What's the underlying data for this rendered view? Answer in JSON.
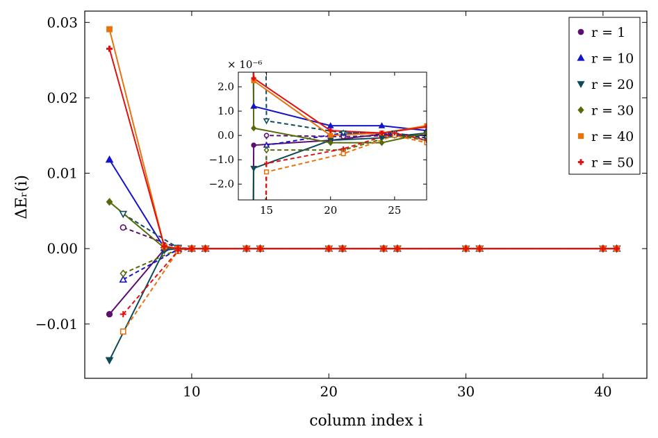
{
  "chart_data": {
    "type": "line",
    "title": "",
    "xlabel": "column index i",
    "ylabel": "ΔEᵣ(i)",
    "xlim": [
      2.2,
      43.2
    ],
    "ylim": [
      -0.0172,
      0.0315
    ],
    "xticks": [
      10,
      20,
      30,
      40
    ],
    "xtick_labels": [
      "10",
      "20",
      "30",
      "40"
    ],
    "yticks": [
      -0.01,
      0.0,
      0.01,
      0.02,
      0.03
    ],
    "ytick_labels": [
      "−0.01",
      "0.00",
      "0.01",
      "0.02",
      "0.03"
    ],
    "grid": false,
    "legend_position": "top-right",
    "series": [
      {
        "name": "r = 1",
        "label": "r = 1",
        "color": "#5b0f6e",
        "marker": "circle",
        "solid_x": [
          4,
          8,
          9,
          10,
          11,
          14,
          15,
          20,
          21,
          24,
          25,
          30,
          31,
          40,
          41
        ],
        "solid_y": [
          -0.0087,
          -0.0001,
          0,
          0,
          0,
          0,
          0,
          0,
          0,
          0,
          0,
          0,
          0,
          0,
          0
        ],
        "dashed_x": [
          5,
          9,
          10,
          11,
          15,
          21,
          25,
          31,
          41
        ],
        "dashed_y": [
          0.0028,
          0.0001,
          0,
          0,
          0,
          0,
          0,
          0,
          0
        ]
      },
      {
        "name": "r = 10",
        "label": "r = 10",
        "color": "#1414c8",
        "marker": "triangle-up",
        "solid_x": [
          4,
          8,
          9,
          10,
          11,
          14,
          15,
          20,
          21,
          24,
          25,
          30,
          31,
          40,
          41
        ],
        "solid_y": [
          0.0118,
          0.0001,
          0,
          0,
          0,
          0,
          0,
          0,
          0,
          0,
          0,
          0,
          0,
          0,
          0
        ],
        "dashed_x": [
          5,
          9,
          10,
          11,
          15,
          21,
          25,
          31,
          41
        ],
        "dashed_y": [
          -0.0041,
          -0.0001,
          0,
          0,
          0,
          0,
          0,
          0,
          0
        ]
      },
      {
        "name": "r = 20",
        "label": "r = 20",
        "color": "#0f4a5a",
        "marker": "triangle-down",
        "solid_x": [
          4,
          8,
          9,
          10,
          11,
          14,
          15,
          20,
          21,
          24,
          25,
          30,
          31,
          40,
          41
        ],
        "solid_y": [
          -0.0148,
          -0.0002,
          0,
          0,
          0,
          0,
          0,
          0,
          0,
          0,
          0,
          0,
          0,
          0,
          0
        ],
        "dashed_x": [
          5,
          9,
          10,
          11,
          15,
          21,
          25,
          31,
          41
        ],
        "dashed_y": [
          0.0046,
          0.0001,
          0,
          0,
          0,
          0,
          0,
          0,
          0
        ]
      },
      {
        "name": "r = 30",
        "label": "r = 30",
        "color": "#556b0a",
        "marker": "diamond",
        "solid_x": [
          4,
          8,
          9,
          10,
          11,
          14,
          15,
          20,
          21,
          24,
          25,
          30,
          31,
          40,
          41
        ],
        "solid_y": [
          0.0062,
          0.0001,
          0,
          0,
          0,
          0,
          0,
          0,
          0,
          0,
          0,
          0,
          0,
          0,
          0
        ],
        "dashed_x": [
          5,
          9,
          10,
          11,
          15,
          21,
          25,
          31,
          41
        ],
        "dashed_y": [
          -0.0033,
          -0.0001,
          0,
          0,
          0,
          0,
          0,
          0,
          0
        ]
      },
      {
        "name": "r = 40",
        "label": "r = 40",
        "color": "#e8730a",
        "marker": "square",
        "solid_x": [
          4,
          8,
          9,
          10,
          11,
          14,
          15,
          20,
          21,
          24,
          25,
          30,
          31,
          40,
          41
        ],
        "solid_y": [
          0.0291,
          0.0003,
          0,
          0,
          0,
          0,
          0,
          0,
          0,
          0,
          0,
          0,
          0,
          0,
          0
        ],
        "dashed_x": [
          5,
          9,
          10,
          11,
          15,
          21,
          25,
          31,
          41
        ],
        "dashed_y": [
          -0.011,
          -0.0003,
          0,
          0,
          0,
          0,
          0,
          0,
          0
        ]
      },
      {
        "name": "r = 50",
        "label": "r = 50",
        "color": "#e01010",
        "marker": "plus",
        "solid_x": [
          4,
          8,
          9,
          10,
          11,
          14,
          15,
          20,
          21,
          24,
          25,
          30,
          31,
          40,
          41
        ],
        "solid_y": [
          0.0265,
          0.0003,
          0,
          0,
          0,
          0,
          0,
          0,
          0,
          0,
          0,
          0,
          0,
          0,
          0
        ],
        "dashed_x": [
          5,
          9,
          10,
          11,
          15,
          21,
          25,
          31,
          41
        ],
        "dashed_y": [
          -0.0087,
          -0.0003,
          0,
          0,
          0,
          0,
          0,
          0,
          0
        ]
      }
    ],
    "inset": {
      "xlim": [
        12.8,
        27.5
      ],
      "ylim": [
        -2.65,
        2.6
      ],
      "scale_label": "× 10⁻⁶",
      "xticks": [
        15,
        20,
        25
      ],
      "xtick_labels": [
        "15",
        "20",
        "25"
      ],
      "yticks": [
        -2.0,
        -1.0,
        0.0,
        1.0,
        2.0
      ],
      "ytick_labels": [
        "−2.0",
        "−1.0",
        "0.0",
        "1.0",
        "2.0"
      ],
      "series": [
        {
          "name": "r = 1",
          "solid_x": [
            14,
            20,
            24,
            27.5
          ],
          "solid_y": [
            -0.4,
            -0.2,
            0.05,
            0.0
          ],
          "dashed_x": [
            15,
            21,
            25,
            27.5
          ],
          "dashed_y": [
            0.0,
            -0.05,
            0.0,
            -0.1
          ]
        },
        {
          "name": "r = 10",
          "solid_x": [
            14,
            20,
            24,
            27.5
          ],
          "solid_y": [
            1.2,
            0.4,
            0.4,
            0.2
          ],
          "dashed_x": [
            15,
            21,
            25,
            27.5
          ],
          "dashed_y": [
            -0.4,
            0.1,
            0.05,
            0.0
          ]
        },
        {
          "name": "r = 20",
          "solid_x": [
            14,
            20,
            24,
            27.5
          ],
          "solid_y": [
            -1.35,
            -0.2,
            -0.1,
            0.1
          ],
          "dashed_x": [
            15,
            21,
            25,
            27.5
          ],
          "dashed_y": [
            0.6,
            0.1,
            0.1,
            -0.1
          ]
        },
        {
          "name": "r = 30",
          "solid_x": [
            14,
            20,
            24,
            27.5
          ],
          "solid_y": [
            0.3,
            -0.3,
            -0.3,
            0.1
          ],
          "dashed_x": [
            15,
            21,
            25,
            27.5
          ],
          "dashed_y": [
            -0.6,
            -0.6,
            0.0,
            -0.2
          ]
        },
        {
          "name": "r = 40",
          "solid_x": [
            14,
            20,
            24,
            27.5
          ],
          "solid_y": [
            2.25,
            0.0,
            0.1,
            0.4
          ],
          "dashed_x": [
            15,
            21,
            25,
            27.5
          ],
          "dashed_y": [
            -1.5,
            -0.75,
            0.0,
            -0.3
          ]
        },
        {
          "name": "r = 50",
          "solid_x": [
            14,
            20,
            24,
            27.5
          ],
          "solid_y": [
            2.35,
            0.2,
            0.1,
            0.35
          ],
          "dashed_x": [
            15,
            21,
            25,
            27.5
          ],
          "dashed_y": [
            -1.15,
            -0.55,
            0.1,
            -0.2
          ]
        }
      ]
    }
  }
}
